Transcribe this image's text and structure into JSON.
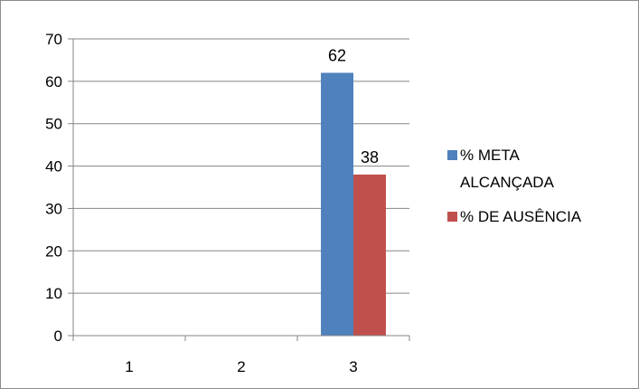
{
  "chart_data": {
    "type": "bar",
    "categories": [
      "1",
      "2",
      "3"
    ],
    "series": [
      {
        "name": "% META ALCANÇADA",
        "values": [
          null,
          null,
          62
        ],
        "color": "#4F81BD"
      },
      {
        "name": "% DE AUSÊNCIA",
        "values": [
          null,
          null,
          38
        ],
        "color": "#C0504D"
      }
    ],
    "ylim": [
      0,
      70
    ],
    "yticks": [
      0,
      10,
      20,
      30,
      40,
      50,
      60,
      70
    ],
    "grid": true,
    "legend_position": "right",
    "legend_lines": [
      [
        "% META",
        "ALCANÇADA"
      ],
      [
        "% DE AUSÊNCIA"
      ]
    ]
  }
}
